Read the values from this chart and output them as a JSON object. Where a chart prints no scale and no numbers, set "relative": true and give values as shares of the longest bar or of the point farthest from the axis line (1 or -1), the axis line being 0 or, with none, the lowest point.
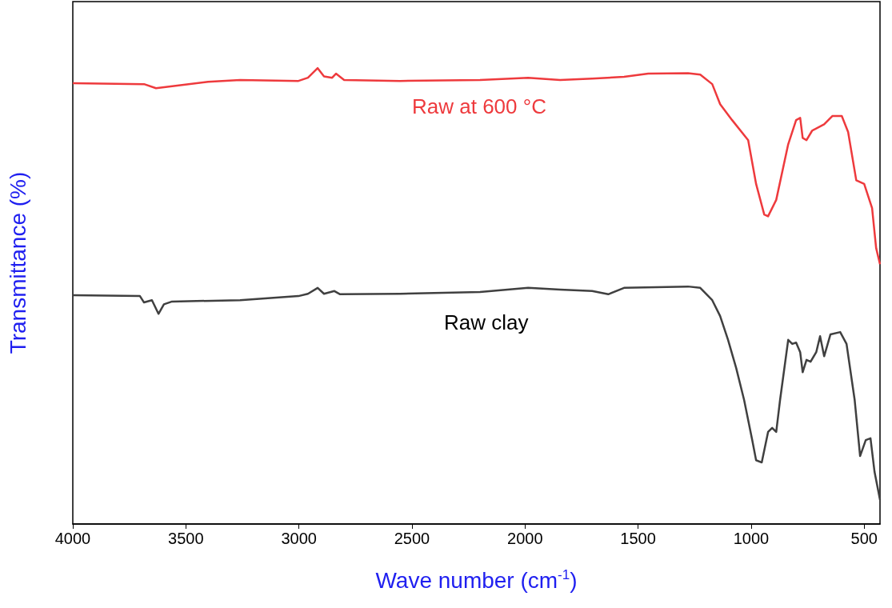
{
  "chart_data": {
    "type": "line",
    "relative": true,
    "xlabel": "Wave number (cm$^{-1}$)",
    "ylabel": "Transmittance (%)",
    "xlim": [
      4000,
      430
    ],
    "xticks": [
      4000,
      3500,
      3000,
      2500,
      2000,
      1500,
      1000,
      500
    ],
    "grid": false,
    "legend": false,
    "marker": "none",
    "line_style": "solid",
    "series": [
      {
        "name": "Raw at 600 °C",
        "color": "#ee3a3d",
        "x": [
          4000,
          3685,
          3632,
          3402,
          3260,
          3002,
          2960,
          2917,
          2889,
          2853,
          2836,
          2800,
          2553,
          2199,
          1986,
          1845,
          1703,
          1562,
          1455,
          1279,
          1225,
          1172,
          1137,
          1084,
          1013,
          978,
          942,
          925,
          889,
          836,
          801,
          783,
          772,
          755,
          730,
          677,
          641,
          599,
          571,
          535,
          500,
          465,
          447,
          430
        ],
        "values": [
          0.967,
          0.965,
          0.956,
          0.97,
          0.974,
          0.972,
          0.979,
          1.0,
          0.982,
          0.979,
          0.988,
          0.974,
          0.972,
          0.974,
          0.979,
          0.974,
          0.977,
          0.981,
          0.988,
          0.989,
          0.986,
          0.965,
          0.921,
          0.886,
          0.842,
          0.746,
          0.679,
          0.675,
          0.711,
          0.833,
          0.886,
          0.891,
          0.847,
          0.842,
          0.863,
          0.877,
          0.895,
          0.895,
          0.86,
          0.754,
          0.746,
          0.693,
          0.605,
          0.57
        ]
      },
      {
        "name": "Raw clay",
        "color": "#404040",
        "x": [
          4000,
          3703,
          3685,
          3650,
          3621,
          3597,
          3561,
          3260,
          3002,
          2960,
          2917,
          2889,
          2843,
          2818,
          2553,
          2199,
          1986,
          1845,
          1703,
          1632,
          1562,
          1279,
          1225,
          1172,
          1137,
          1102,
          1066,
          1031,
          995,
          978,
          953,
          925,
          907,
          889,
          872,
          836,
          818,
          801,
          783,
          772,
          755,
          737,
          712,
          695,
          677,
          649,
          606,
          578,
          542,
          518,
          493,
          472,
          454,
          430
        ],
        "values": [
          0.502,
          0.5,
          0.486,
          0.491,
          0.461,
          0.482,
          0.488,
          0.491,
          0.5,
          0.505,
          0.518,
          0.505,
          0.511,
          0.504,
          0.505,
          0.509,
          0.518,
          0.514,
          0.511,
          0.504,
          0.518,
          0.521,
          0.518,
          0.491,
          0.456,
          0.404,
          0.342,
          0.272,
          0.184,
          0.14,
          0.135,
          0.202,
          0.211,
          0.202,
          0.272,
          0.404,
          0.395,
          0.398,
          0.377,
          0.333,
          0.36,
          0.356,
          0.377,
          0.412,
          0.368,
          0.416,
          0.421,
          0.395,
          0.272,
          0.149,
          0.184,
          0.188,
          0.114,
          0.053
        ]
      }
    ]
  }
}
